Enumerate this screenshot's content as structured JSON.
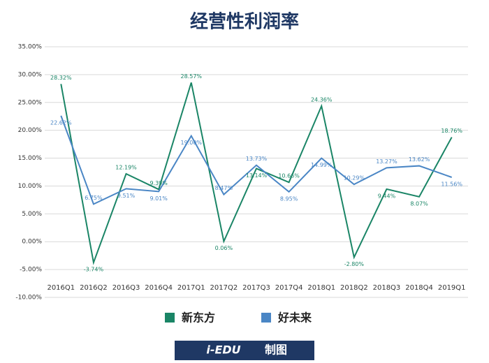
{
  "chart_data": {
    "type": "line",
    "title": "经营性利润率",
    "categories": [
      "2016Q1",
      "2016Q2",
      "2016Q3",
      "2016Q4",
      "2017Q1",
      "2017Q2",
      "2017Q3",
      "2017Q4",
      "2018Q1",
      "2018Q2",
      "2018Q3",
      "2018Q4",
      "2019Q1"
    ],
    "series": [
      {
        "name": "新东方",
        "color": "#1a8566",
        "values": [
          28.32,
          -3.74,
          12.19,
          9.39,
          28.57,
          0.06,
          13.14,
          10.66,
          24.36,
          -2.8,
          9.44,
          8.07,
          18.76
        ],
        "value_labels": [
          "28.32%",
          "-3.74%",
          "12.19%",
          "9.39%",
          "28.57%",
          "0.06%",
          "13.14%",
          "10.66%",
          "24.36%",
          "-2.80%",
          "9.44%",
          "8.07%",
          "18.76%"
        ]
      },
      {
        "name": "好未来",
        "color": "#4a86c5",
        "values": [
          22.62,
          6.75,
          9.51,
          9.01,
          19.0,
          8.47,
          13.73,
          8.95,
          14.99,
          10.29,
          13.27,
          13.62,
          11.56
        ],
        "value_labels": [
          "22.62%",
          "6.75%",
          "9.51%",
          "9.01%",
          "19.00%",
          "8.47%",
          "13.73%",
          "8.95%",
          "14.99%",
          "10.29%",
          "13.27%",
          "13.62%",
          "11.56%"
        ]
      }
    ],
    "ylim": [
      -10,
      35
    ],
    "yticks": [
      {
        "value": -10,
        "label": "-10.00%"
      },
      {
        "value": -5,
        "label": "-5.00%"
      },
      {
        "value": 0,
        "label": "0.00%"
      },
      {
        "value": 5,
        "label": "5.00%"
      },
      {
        "value": 10,
        "label": "10.00%"
      },
      {
        "value": 15,
        "label": "15.00%"
      },
      {
        "value": 20,
        "label": "20.00%"
      },
      {
        "value": 25,
        "label": "25.00%"
      },
      {
        "value": 30,
        "label": "30.00%"
      },
      {
        "value": 35,
        "label": "35.00%"
      }
    ],
    "grid": true,
    "legend": "bottom",
    "footer": [
      "i-EDU",
      "制图"
    ]
  }
}
